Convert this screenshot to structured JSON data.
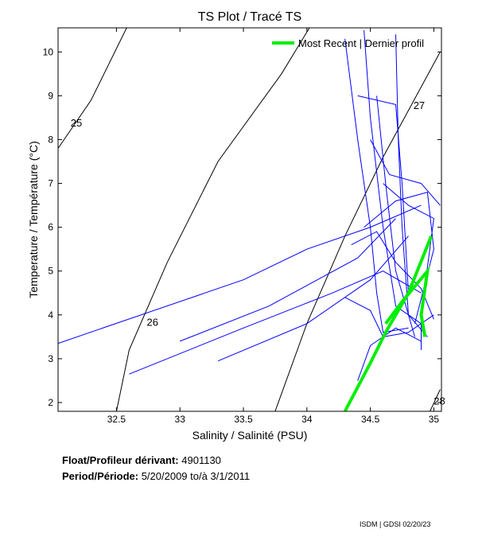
{
  "chart_data": {
    "type": "line",
    "title": "TS Plot / Tracé TS",
    "xlabel": "Salinity / Salinité (PSU)",
    "ylabel": "Temperature / Température (°C)",
    "xlim": [
      32.04,
      35.06
    ],
    "ylim": [
      1.8,
      10.55
    ],
    "xticks": [
      32.5,
      33,
      33.5,
      34,
      34.5,
      35
    ],
    "xtick_labels": [
      "32.5",
      "33",
      "33.5",
      "34",
      "34.5",
      "35"
    ],
    "yticks": [
      2,
      3,
      4,
      5,
      6,
      7,
      8,
      9,
      10
    ],
    "ytick_labels": [
      "2",
      "3",
      "4",
      "5",
      "6",
      "7",
      "8",
      "9",
      "10"
    ],
    "grid": false,
    "legend": {
      "position": "top-right",
      "entries": [
        {
          "label": "Most Recent | Dernier profil",
          "color": "#00ee00"
        }
      ]
    },
    "density_contours": [
      {
        "label": "25",
        "points": [
          [
            32.04,
            7.8
          ],
          [
            32.3,
            8.9
          ],
          [
            32.58,
            10.55
          ]
        ]
      },
      {
        "label": "26",
        "points": [
          [
            32.5,
            1.8
          ],
          [
            32.6,
            3.2
          ],
          [
            32.9,
            5.2
          ],
          [
            33.3,
            7.5
          ],
          [
            33.8,
            9.5
          ],
          [
            34.02,
            10.55
          ]
        ]
      },
      {
        "label": "27",
        "points": [
          [
            33.75,
            1.8
          ],
          [
            34.0,
            3.8
          ],
          [
            34.3,
            5.8
          ],
          [
            34.6,
            7.6
          ],
          [
            35.05,
            10.0
          ]
        ]
      },
      {
        "label": "28",
        "points": [
          [
            34.97,
            1.8
          ],
          [
            35.05,
            2.3
          ]
        ]
      }
    ],
    "contour_color": "#000000",
    "profile_color": "#0000ff",
    "profiles": [
      [
        [
          32.04,
          3.35
        ],
        [
          33.5,
          4.8
        ],
        [
          34.0,
          5.5
        ],
        [
          34.5,
          6.0
        ],
        [
          34.9,
          6.5
        ]
      ],
      [
        [
          32.6,
          2.65
        ],
        [
          33.5,
          3.7
        ],
        [
          34.2,
          4.5
        ],
        [
          34.6,
          5.0
        ],
        [
          34.9,
          4.5
        ]
      ],
      [
        [
          33.0,
          3.4
        ],
        [
          33.7,
          4.2
        ],
        [
          34.4,
          5.3
        ],
        [
          34.7,
          6.2
        ]
      ],
      [
        [
          33.3,
          2.95
        ],
        [
          34.0,
          3.8
        ],
        [
          34.5,
          4.8
        ],
        [
          34.8,
          5.8
        ]
      ],
      [
        [
          34.3,
          10.3
        ],
        [
          34.4,
          8
        ],
        [
          34.5,
          6
        ],
        [
          34.55,
          4.5
        ],
        [
          34.6,
          3.6
        ],
        [
          34.8,
          3.7
        ]
      ],
      [
        [
          34.45,
          10.5
        ],
        [
          34.5,
          8.5
        ],
        [
          34.6,
          6
        ],
        [
          34.7,
          4.2
        ],
        [
          34.9,
          3.8
        ]
      ],
      [
        [
          34.55,
          9.0
        ],
        [
          34.62,
          7
        ],
        [
          34.7,
          5
        ],
        [
          34.85,
          3.5
        ]
      ],
      [
        [
          34.7,
          10.4
        ],
        [
          34.72,
          8
        ],
        [
          34.75,
          6
        ],
        [
          34.8,
          4
        ],
        [
          34.95,
          3.5
        ]
      ],
      [
        [
          34.4,
          9.0
        ],
        [
          34.7,
          8.8
        ],
        [
          34.75,
          7
        ],
        [
          34.8,
          4.5
        ]
      ],
      [
        [
          34.6,
          7.0
        ],
        [
          34.8,
          6.5
        ],
        [
          35.0,
          6.2
        ],
        [
          34.9,
          4.0
        ],
        [
          34.9,
          3.2
        ]
      ],
      [
        [
          34.3,
          4.4
        ],
        [
          34.5,
          4.1
        ],
        [
          34.6,
          3.5
        ],
        [
          34.8,
          3.6
        ],
        [
          35.0,
          4.0
        ]
      ],
      [
        [
          34.45,
          6.0
        ],
        [
          34.7,
          6.6
        ],
        [
          34.95,
          6.8
        ],
        [
          35.0,
          5.5
        ],
        [
          34.85,
          3.8
        ]
      ],
      [
        [
          34.4,
          2.5
        ],
        [
          34.5,
          3.3
        ],
        [
          34.7,
          3.7
        ],
        [
          34.9,
          3.4
        ]
      ],
      [
        [
          34.5,
          8.0
        ],
        [
          34.65,
          7.2
        ],
        [
          34.9,
          7.0
        ],
        [
          35.05,
          6.5
        ]
      ],
      [
        [
          34.35,
          5.6
        ],
        [
          34.55,
          5.9
        ],
        [
          34.7,
          5.2
        ],
        [
          34.9,
          4.6
        ],
        [
          35.0,
          3.9
        ]
      ]
    ],
    "most_recent_color": "#00ee00",
    "most_recent": [
      [
        [
          34.3,
          1.8
        ],
        [
          34.5,
          2.9
        ],
        [
          34.62,
          3.6
        ],
        [
          34.8,
          4.5
        ],
        [
          34.98,
          5.8
        ]
      ],
      [
        [
          34.62,
          3.8
        ],
        [
          34.75,
          4.3
        ],
        [
          34.95,
          5.0
        ],
        [
          34.9,
          4.0
        ],
        [
          34.93,
          3.5
        ]
      ]
    ]
  },
  "info": {
    "float_label": "Float/Profileur dérivant:",
    "float_id": "4901130",
    "period_label": "Period/Période:",
    "start": "5/20/2009",
    "to": "to/à",
    "end": "3/1/2011"
  },
  "footer": "ISDM | GDSI  02/20/23"
}
